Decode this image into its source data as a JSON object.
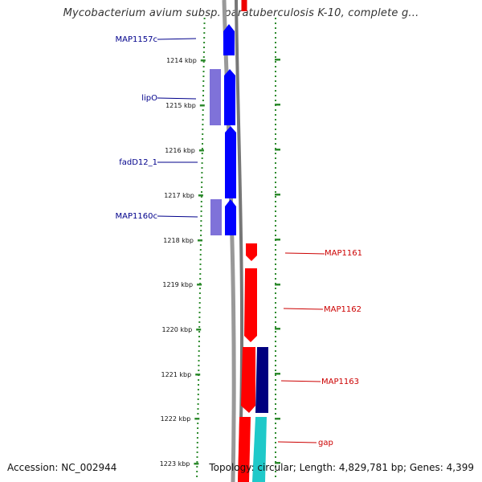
{
  "title": "Mycobacterium avium subsp. paratuberculosis K-10, complete g...",
  "footer": {
    "accession": "Accession: NC_002944",
    "topology": "Topology: circular; Length: 4,829,781 bp; Genes: 4,399"
  },
  "colors": {
    "forward_gene": "#0000ff",
    "forward_gene_light": "#7f72d9",
    "reverse_gene": "#ff0000",
    "reverse_gene_dark": "#00007f",
    "gap": "#1fc9c9",
    "backbone": "#777777",
    "ruler": "#2e8b2e",
    "label_left": "#00008b",
    "label_right": "#cc0000"
  },
  "ruler_labels": [
    "1214 kbp",
    "1215 kbp",
    "1216 kbp",
    "1217 kbp",
    "1218 kbp",
    "1219 kbp",
    "1220 kbp",
    "1221 kbp",
    "1222 kbp",
    "1223 kbp"
  ],
  "left_features": [
    "MAP1157c",
    "lipO",
    "fadD12_1",
    "MAP1160c"
  ],
  "right_features": [
    "MAP1161",
    "MAP1162",
    "MAP1163",
    "gap"
  ]
}
